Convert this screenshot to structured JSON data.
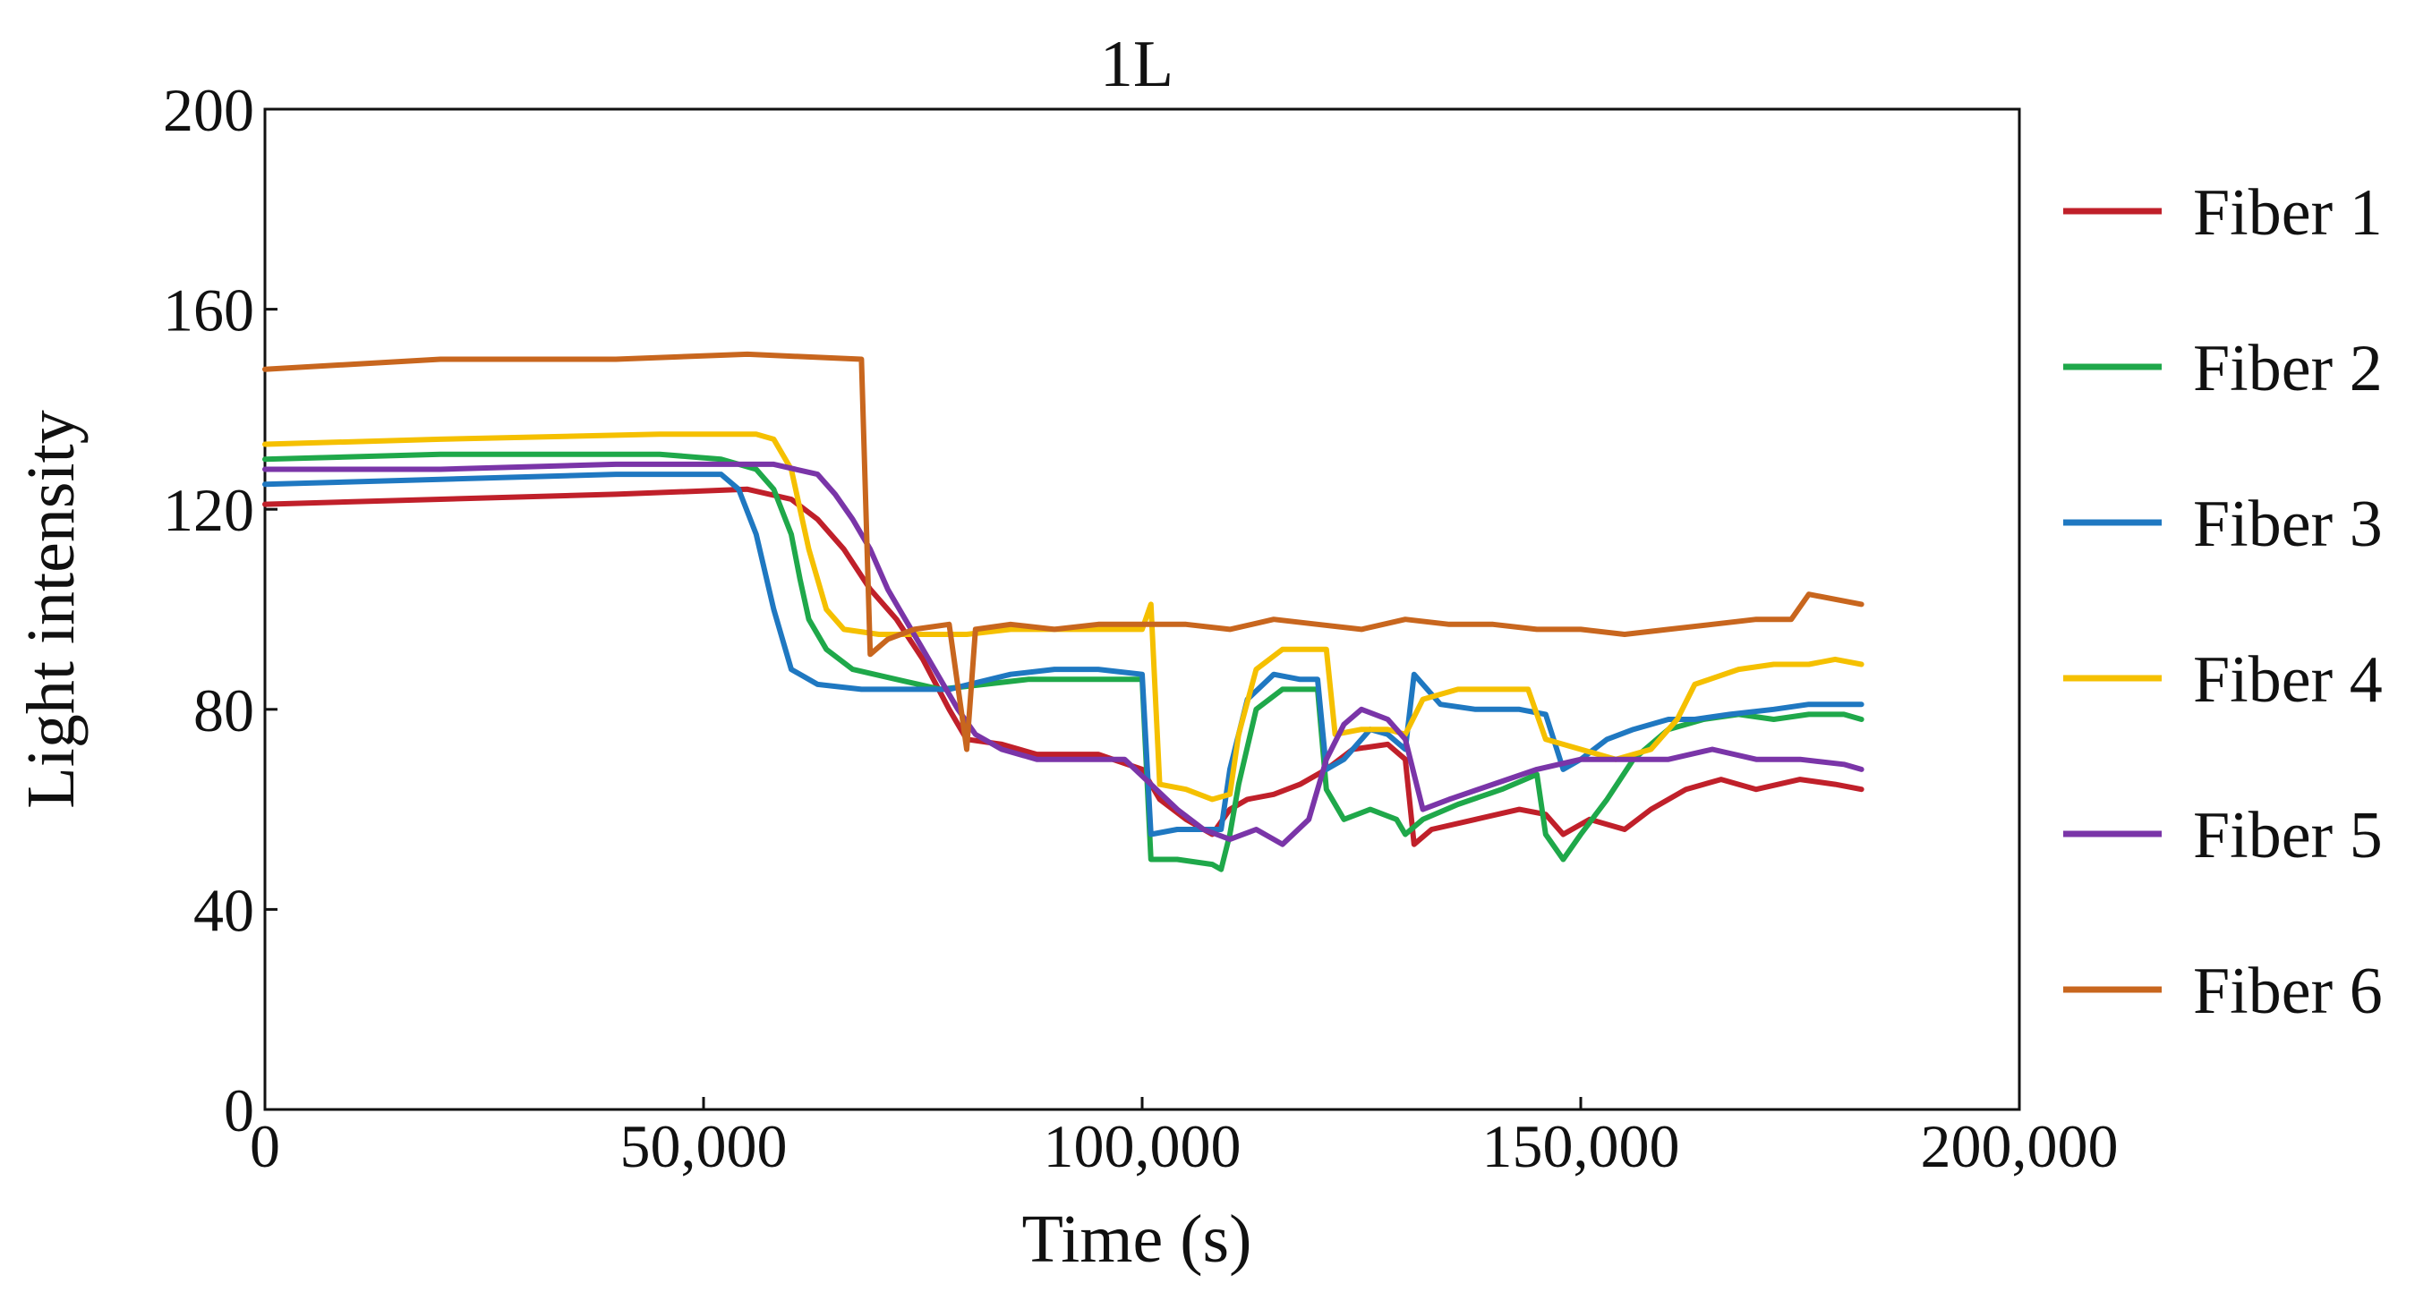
{
  "chart_data": {
    "type": "line",
    "title": "1L",
    "xlabel": "Time (s)",
    "ylabel": "Light intensity",
    "xlim": [
      0,
      200000
    ],
    "ylim": [
      0,
      200
    ],
    "x_ticks": [
      0,
      50000,
      100000,
      150000,
      200000
    ],
    "x_tick_labels": [
      "0",
      "50,000",
      "100,000",
      "150,000",
      "200,000"
    ],
    "y_ticks": [
      0,
      40,
      80,
      120,
      160,
      200
    ],
    "y_tick_labels": [
      "0",
      "40",
      "80",
      "120",
      "160",
      "200"
    ],
    "grid": false,
    "legend_position": "right",
    "series": [
      {
        "name": "Fiber 1",
        "color": "#c0202a",
        "points": [
          [
            0,
            121
          ],
          [
            20000,
            122
          ],
          [
            40000,
            123
          ],
          [
            55000,
            124
          ],
          [
            60000,
            122
          ],
          [
            63000,
            118
          ],
          [
            66000,
            112
          ],
          [
            69000,
            104
          ],
          [
            72000,
            98
          ],
          [
            75000,
            90
          ],
          [
            78000,
            80
          ],
          [
            80000,
            74
          ],
          [
            84000,
            73
          ],
          [
            88000,
            71
          ],
          [
            95000,
            71
          ],
          [
            100000,
            68
          ],
          [
            102000,
            62
          ],
          [
            105000,
            58
          ],
          [
            108000,
            55
          ],
          [
            110000,
            60
          ],
          [
            112000,
            62
          ],
          [
            115000,
            63
          ],
          [
            118000,
            65
          ],
          [
            121000,
            68
          ],
          [
            124000,
            72
          ],
          [
            128000,
            73
          ],
          [
            130000,
            70
          ],
          [
            131000,
            53
          ],
          [
            133000,
            56
          ],
          [
            138000,
            58
          ],
          [
            143000,
            60
          ],
          [
            146000,
            59
          ],
          [
            148000,
            55
          ],
          [
            151000,
            58
          ],
          [
            155000,
            56
          ],
          [
            158000,
            60
          ],
          [
            162000,
            64
          ],
          [
            166000,
            66
          ],
          [
            170000,
            64
          ],
          [
            175000,
            66
          ],
          [
            179000,
            65
          ],
          [
            182000,
            64
          ]
        ]
      },
      {
        "name": "Fiber 2",
        "color": "#1fa84a",
        "points": [
          [
            0,
            130
          ],
          [
            20000,
            131
          ],
          [
            45000,
            131
          ],
          [
            52000,
            130
          ],
          [
            56000,
            128
          ],
          [
            58000,
            124
          ],
          [
            60000,
            115
          ],
          [
            61000,
            106
          ],
          [
            62000,
            98
          ],
          [
            64000,
            92
          ],
          [
            67000,
            88
          ],
          [
            72000,
            86
          ],
          [
            77000,
            84
          ],
          [
            82000,
            85
          ],
          [
            87000,
            86
          ],
          [
            92000,
            86
          ],
          [
            97000,
            86
          ],
          [
            100000,
            86
          ],
          [
            101000,
            50
          ],
          [
            104000,
            50
          ],
          [
            108000,
            49
          ],
          [
            109000,
            48
          ],
          [
            110000,
            55
          ],
          [
            111000,
            65
          ],
          [
            113000,
            80
          ],
          [
            116000,
            84
          ],
          [
            119000,
            84
          ],
          [
            120000,
            84
          ],
          [
            121000,
            64
          ],
          [
            123000,
            58
          ],
          [
            126000,
            60
          ],
          [
            129000,
            58
          ],
          [
            130000,
            55
          ],
          [
            132000,
            58
          ],
          [
            136000,
            61
          ],
          [
            141000,
            64
          ],
          [
            145000,
            67
          ],
          [
            146000,
            55
          ],
          [
            148000,
            50
          ],
          [
            150000,
            55
          ],
          [
            153000,
            62
          ],
          [
            156000,
            70
          ],
          [
            160000,
            76
          ],
          [
            164000,
            78
          ],
          [
            168000,
            79
          ],
          [
            172000,
            78
          ],
          [
            176000,
            79
          ],
          [
            180000,
            79
          ],
          [
            182000,
            78
          ]
        ]
      },
      {
        "name": "Fiber 3",
        "color": "#1f78c1",
        "points": [
          [
            0,
            125
          ],
          [
            20000,
            126
          ],
          [
            40000,
            127
          ],
          [
            52000,
            127
          ],
          [
            54000,
            124
          ],
          [
            56000,
            115
          ],
          [
            58000,
            100
          ],
          [
            60000,
            88
          ],
          [
            63000,
            85
          ],
          [
            68000,
            84
          ],
          [
            73000,
            84
          ],
          [
            78000,
            84
          ],
          [
            85000,
            87
          ],
          [
            90000,
            88
          ],
          [
            95000,
            88
          ],
          [
            100000,
            87
          ],
          [
            101000,
            55
          ],
          [
            104000,
            56
          ],
          [
            107000,
            56
          ],
          [
            109000,
            56
          ],
          [
            110000,
            68
          ],
          [
            112000,
            82
          ],
          [
            115000,
            87
          ],
          [
            118000,
            86
          ],
          [
            120000,
            86
          ],
          [
            121000,
            68
          ],
          [
            123000,
            70
          ],
          [
            126000,
            76
          ],
          [
            128000,
            75
          ],
          [
            130000,
            72
          ],
          [
            131000,
            87
          ],
          [
            134000,
            81
          ],
          [
            138000,
            80
          ],
          [
            143000,
            80
          ],
          [
            146000,
            79
          ],
          [
            148000,
            68
          ],
          [
            150000,
            70
          ],
          [
            153000,
            74
          ],
          [
            156000,
            76
          ],
          [
            160000,
            78
          ],
          [
            163000,
            78
          ],
          [
            167000,
            79
          ],
          [
            172000,
            80
          ],
          [
            176000,
            81
          ],
          [
            180000,
            81
          ],
          [
            182000,
            81
          ]
        ]
      },
      {
        "name": "Fiber 4",
        "color": "#f5c000",
        "points": [
          [
            0,
            133
          ],
          [
            20000,
            134
          ],
          [
            45000,
            135
          ],
          [
            56000,
            135
          ],
          [
            58000,
            134
          ],
          [
            60000,
            128
          ],
          [
            62000,
            112
          ],
          [
            64000,
            100
          ],
          [
            66000,
            96
          ],
          [
            70000,
            95
          ],
          [
            75000,
            95
          ],
          [
            80000,
            95
          ],
          [
            85000,
            96
          ],
          [
            90000,
            96
          ],
          [
            95000,
            96
          ],
          [
            100000,
            96
          ],
          [
            101000,
            101
          ],
          [
            102000,
            65
          ],
          [
            105000,
            64
          ],
          [
            108000,
            62
          ],
          [
            110000,
            63
          ],
          [
            111000,
            75
          ],
          [
            113000,
            88
          ],
          [
            116000,
            92
          ],
          [
            119000,
            92
          ],
          [
            121000,
            92
          ],
          [
            122000,
            75
          ],
          [
            125000,
            76
          ],
          [
            128000,
            76
          ],
          [
            130000,
            75
          ],
          [
            132000,
            82
          ],
          [
            136000,
            84
          ],
          [
            141000,
            84
          ],
          [
            144000,
            84
          ],
          [
            146000,
            74
          ],
          [
            150000,
            72
          ],
          [
            154000,
            70
          ],
          [
            158000,
            72
          ],
          [
            161000,
            78
          ],
          [
            163000,
            85
          ],
          [
            168000,
            88
          ],
          [
            172000,
            89
          ],
          [
            176000,
            89
          ],
          [
            179000,
            90
          ],
          [
            182000,
            89
          ]
        ]
      },
      {
        "name": "Fiber 5",
        "color": "#7a35a8",
        "points": [
          [
            0,
            128
          ],
          [
            20000,
            128
          ],
          [
            40000,
            129
          ],
          [
            58000,
            129
          ],
          [
            63000,
            127
          ],
          [
            65000,
            123
          ],
          [
            67000,
            118
          ],
          [
            69000,
            112
          ],
          [
            71000,
            104
          ],
          [
            73000,
            98
          ],
          [
            75000,
            92
          ],
          [
            77000,
            86
          ],
          [
            79000,
            80
          ],
          [
            81000,
            75
          ],
          [
            84000,
            72
          ],
          [
            88000,
            70
          ],
          [
            93000,
            70
          ],
          [
            98000,
            70
          ],
          [
            101000,
            65
          ],
          [
            104000,
            60
          ],
          [
            107000,
            56
          ],
          [
            110000,
            54
          ],
          [
            113000,
            56
          ],
          [
            116000,
            53
          ],
          [
            119000,
            58
          ],
          [
            121000,
            70
          ],
          [
            123000,
            77
          ],
          [
            125000,
            80
          ],
          [
            128000,
            78
          ],
          [
            130000,
            74
          ],
          [
            132000,
            60
          ],
          [
            135000,
            62
          ],
          [
            140000,
            65
          ],
          [
            145000,
            68
          ],
          [
            150000,
            70
          ],
          [
            155000,
            70
          ],
          [
            160000,
            70
          ],
          [
            165000,
            72
          ],
          [
            170000,
            70
          ],
          [
            175000,
            70
          ],
          [
            180000,
            69
          ],
          [
            182000,
            68
          ]
        ]
      },
      {
        "name": "Fiber 6",
        "color": "#c8661e",
        "points": [
          [
            0,
            148
          ],
          [
            10000,
            149
          ],
          [
            20000,
            150
          ],
          [
            40000,
            150
          ],
          [
            55000,
            151
          ],
          [
            68000,
            150
          ],
          [
            69000,
            91
          ],
          [
            71000,
            94
          ],
          [
            74000,
            96
          ],
          [
            78000,
            97
          ],
          [
            80000,
            72
          ],
          [
            81000,
            96
          ],
          [
            85000,
            97
          ],
          [
            90000,
            96
          ],
          [
            95000,
            97
          ],
          [
            100000,
            97
          ],
          [
            105000,
            97
          ],
          [
            110000,
            96
          ],
          [
            115000,
            98
          ],
          [
            120000,
            97
          ],
          [
            125000,
            96
          ],
          [
            130000,
            98
          ],
          [
            135000,
            97
          ],
          [
            140000,
            97
          ],
          [
            145000,
            96
          ],
          [
            150000,
            96
          ],
          [
            155000,
            95
          ],
          [
            160000,
            96
          ],
          [
            165000,
            97
          ],
          [
            170000,
            98
          ],
          [
            174000,
            98
          ],
          [
            176000,
            103
          ],
          [
            179000,
            102
          ],
          [
            182000,
            101
          ]
        ]
      }
    ]
  }
}
